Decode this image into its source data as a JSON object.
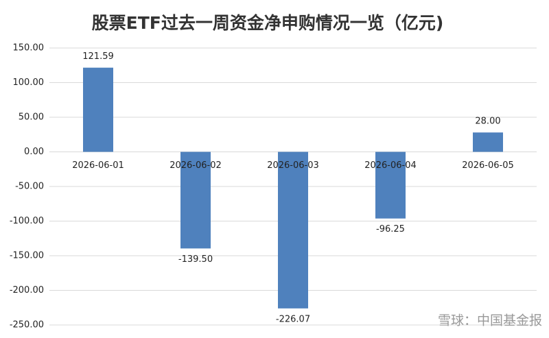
{
  "chart_data": {
    "type": "bar",
    "title": "股票ETF过去一周资金净申购情况一览（亿元)",
    "categories": [
      "2026-06-01",
      "2026-06-02",
      "2026-06-03",
      "2026-06-04",
      "2026-06-05"
    ],
    "values": [
      121.59,
      -139.5,
      -226.07,
      -96.25,
      28
    ],
    "value_labels": [
      "121.59",
      "-139.50",
      "-226.07",
      "-96.25",
      "28.00"
    ],
    "color": "#4f81bd",
    "ylim": [
      -250,
      150
    ],
    "yticks": [
      {
        "value": -250,
        "label": "-250.00"
      },
      {
        "value": -200,
        "label": "-200.00"
      },
      {
        "value": -150,
        "label": "-150.00"
      },
      {
        "value": -100,
        "label": "-100.00"
      },
      {
        "value": -50,
        "label": "-50.00"
      },
      {
        "value": 0,
        "label": "0.00"
      },
      {
        "value": 50,
        "label": "50.00"
      },
      {
        "value": 100,
        "label": "100.00"
      },
      {
        "value": 150,
        "label": "150.00"
      }
    ],
    "grid": true,
    "watermark": "雪球：中国基金报"
  }
}
